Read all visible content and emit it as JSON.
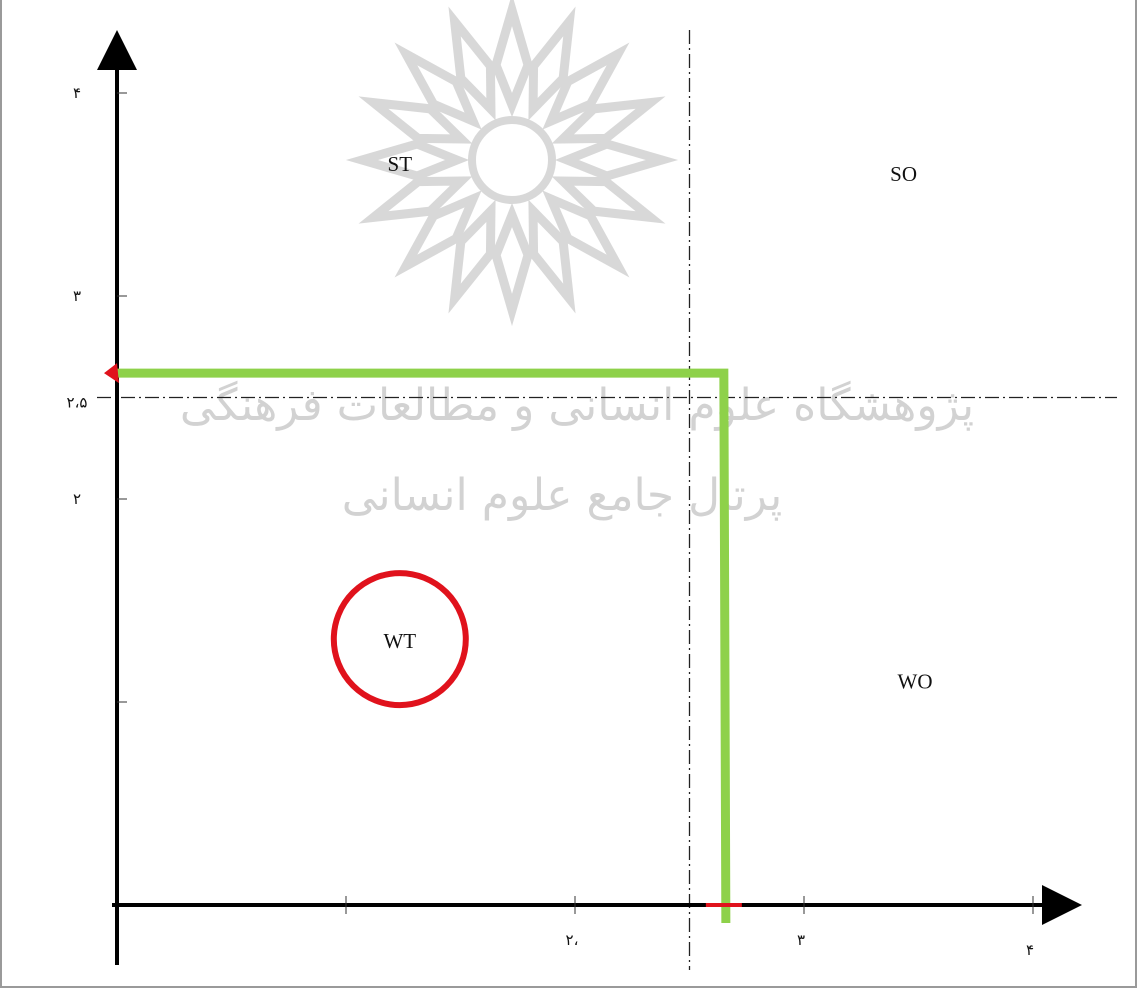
{
  "chart_data": {
    "type": "quadrant",
    "xlim": [
      0,
      4
    ],
    "ylim": [
      0,
      4
    ],
    "x_ticks": [
      {
        "value": 1,
        "label": ""
      },
      {
        "value": 2,
        "label": "۲،"
      },
      {
        "value": 3,
        "label": "۳"
      },
      {
        "value": 4,
        "label": "۴"
      }
    ],
    "y_ticks": [
      {
        "value": 4,
        "label": "۴"
      },
      {
        "value": 3,
        "label": "۳"
      },
      {
        "value": 2.5,
        "label": "۲،۵"
      },
      {
        "value": 2,
        "label": "۲"
      },
      {
        "value": 1,
        "label": ""
      }
    ],
    "quadrants": [
      {
        "label": "ST",
        "x": 1.2,
        "y": 3.65
      },
      {
        "label": "SO",
        "x": 3.4,
        "y": 3.6
      },
      {
        "label": "WT",
        "x": 1.2,
        "y": 1.3
      },
      {
        "label": "WO",
        "x": 3.45,
        "y": 1.1
      }
    ],
    "dividers": {
      "x": 2.5,
      "y": 2.5
    },
    "result_point": {
      "x": 2.65,
      "y": 2.62
    },
    "highlighted_quadrant": "WT",
    "colors": {
      "axis": "#000000",
      "divider": "#222222",
      "result_lines": "#8ed14a",
      "highlight_circle": "#e0121c",
      "markers": "#e0121c"
    }
  },
  "watermark": {
    "line1": "پژوهشگاه علوم انسانی و مطالعات فرهنگی",
    "line2": "پرتال جامع علوم انسانی"
  }
}
